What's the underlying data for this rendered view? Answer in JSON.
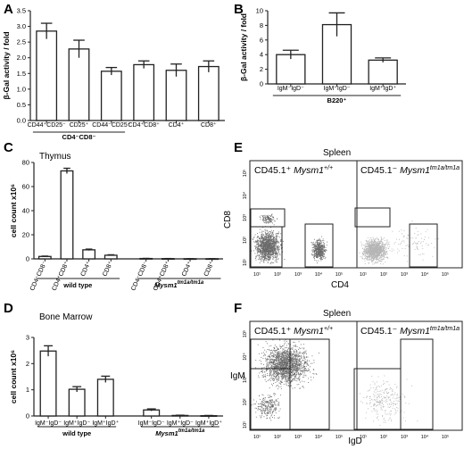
{
  "chart_data": [
    {
      "panel": "A",
      "type": "bar",
      "ylabel": "β-Gal activity / fold",
      "ylim": [
        0,
        3.5
      ],
      "yticks": [
        "0.0",
        "0.5",
        "1.0",
        "1.5",
        "2.0",
        "2.5",
        "3.0",
        "3.5"
      ],
      "categories": [
        "CD44⁺CD25⁻",
        "CD25⁺",
        "CD44⁻CD25⁻",
        "CD4⁺CD8⁺",
        "CD4⁺",
        "CD8⁺"
      ],
      "values": [
        2.85,
        2.28,
        1.57,
        1.78,
        1.6,
        1.72
      ],
      "errors": [
        0.25,
        0.28,
        0.12,
        0.12,
        0.2,
        0.18
      ],
      "group_label": "CD4⁻CD8⁻"
    },
    {
      "panel": "B",
      "type": "bar",
      "ylabel": "β-Gal activity / fold",
      "ylim": [
        0,
        10
      ],
      "yticks": [
        "0",
        "2",
        "4",
        "6",
        "8",
        "10"
      ],
      "categories": [
        "IgM⁻IgD⁻",
        "IgM⁺IgD⁻",
        "IgM⁺IgD⁺"
      ],
      "values": [
        4.0,
        8.1,
        3.25
      ],
      "errors": [
        0.6,
        1.6,
        0.3
      ],
      "group_label": "B220⁺"
    },
    {
      "panel": "C",
      "type": "bar",
      "title": "Thymus",
      "ylabel": "cell count x10⁶",
      "ylim": [
        0,
        80
      ],
      "yticks": [
        "0",
        "20",
        "40",
        "60",
        "80"
      ],
      "categories": [
        "CD4⁻CD8⁻",
        "CD4⁺CD8⁺",
        "CD4⁺",
        "CD8⁺",
        "CD4⁻CD8⁻",
        "CD4⁺CD8⁺",
        "CD4⁺",
        "CD8⁺"
      ],
      "values": [
        2.0,
        73.0,
        7.5,
        3.0,
        0.3,
        0.2,
        0.1,
        0.1
      ],
      "errors": [
        0.3,
        2.2,
        0.6,
        0.4,
        0.1,
        0.1,
        0.05,
        0.05
      ],
      "groups": [
        {
          "label": "wild type",
          "italic": false
        },
        {
          "label": "Mysm1",
          "sup": "tm1a/tm1a",
          "italic": true
        }
      ]
    },
    {
      "panel": "D",
      "type": "bar",
      "title": "Bone Marrow",
      "ylabel": "cell count x10⁶",
      "ylim": [
        0,
        3
      ],
      "yticks": [
        "0",
        "1",
        "2",
        "3"
      ],
      "categories": [
        "IgM⁻IgD⁻",
        "IgM⁺IgD⁻",
        "IgM⁺IgD⁺",
        "IgM⁻IgD⁻",
        "IgM⁺IgD⁻",
        "IgM⁺IgD⁺"
      ],
      "values": [
        2.48,
        1.02,
        1.4,
        0.23,
        0.02,
        0.01
      ],
      "errors": [
        0.2,
        0.1,
        0.12,
        0.04,
        0.01,
        0.01
      ],
      "groups": [
        {
          "label": "wild type",
          "italic": false
        },
        {
          "label": "Mysm1",
          "sup": "tm1a/tm1a",
          "italic": true
        }
      ]
    }
  ],
  "panels": {
    "a": "A",
    "b": "B",
    "c": "C",
    "d": "D",
    "e": "E",
    "f": "F"
  },
  "flow": {
    "e": {
      "title": "Spleen",
      "left_label": "CD45.1⁺",
      "left_gene": "Mysm1",
      "left_sup": "+/+",
      "right_label": "CD45.1⁻",
      "right_gene": "Mysm1",
      "right_sup": "tm1a/tm1a",
      "xlabel": "CD4",
      "ylabel": "CD8",
      "left_ticks": [
        "10⁵",
        "10⁴",
        "10³",
        "10²",
        "10¹"
      ],
      "bottom_ticks": [
        "10¹",
        "10²",
        "10³",
        "10⁴",
        "10⁵"
      ]
    },
    "f": {
      "title": "Spleen",
      "left_label": "CD45.1⁺",
      "left_gene": "Mysm1",
      "left_sup": "+/+",
      "right_label": "CD45.1⁻",
      "right_gene": "Mysm1",
      "right_sup": "tm1a/tm1a",
      "xlabel": "IgD",
      "ylabel": "IgM",
      "left_ticks": [
        "10⁵",
        "10⁴",
        "10³",
        "10²",
        "10¹"
      ],
      "bottom_ticks": [
        "10¹",
        "10²",
        "10³",
        "10⁴",
        "10⁵"
      ]
    }
  },
  "colors": {
    "dots_dark": "#6a6a6a",
    "dots_light": "#b4b4b4"
  }
}
